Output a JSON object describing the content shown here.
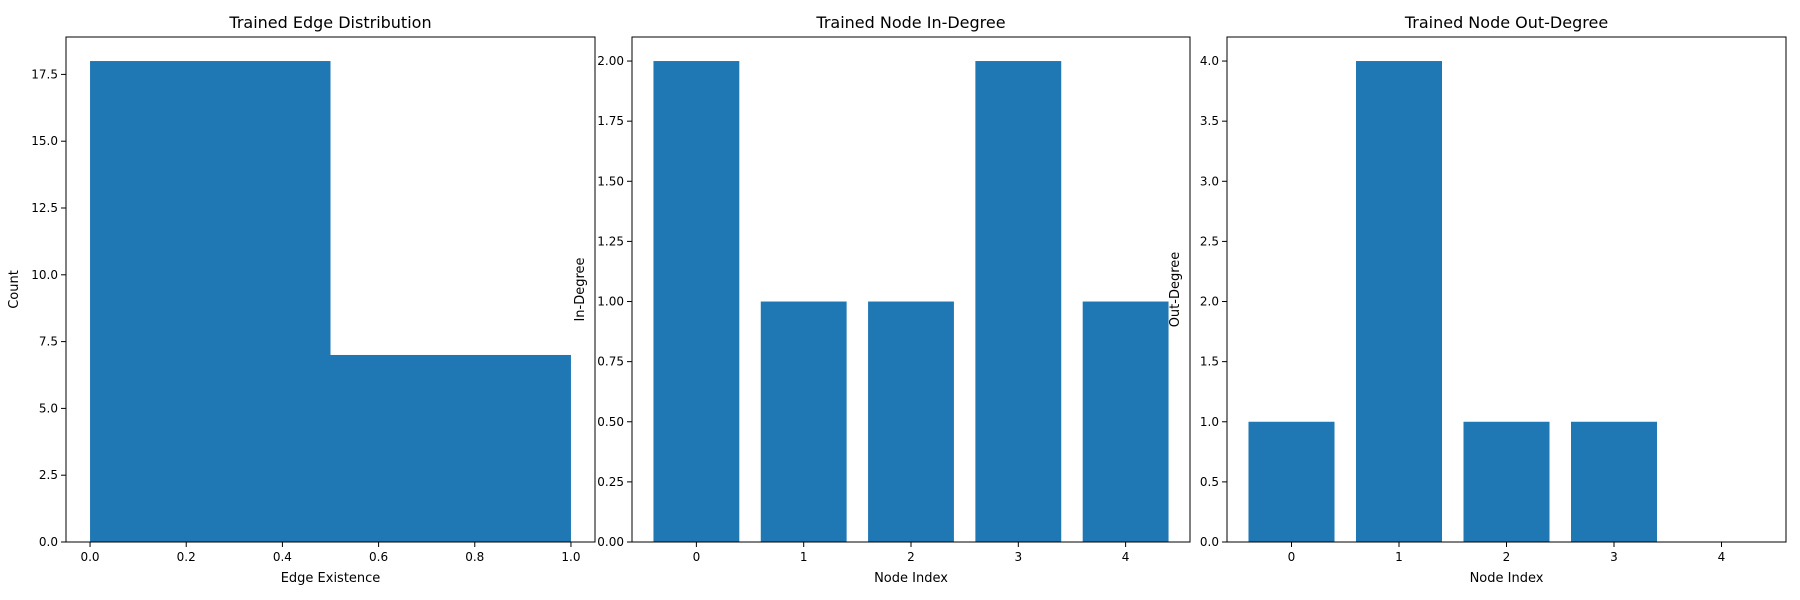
{
  "chart_data": [
    {
      "type": "bar",
      "subtype": "histogram",
      "title": "Trained Edge Distribution",
      "xlabel": "Edge Existence",
      "ylabel": "Count",
      "bins": [
        {
          "start": 0.0,
          "end": 0.5,
          "value": 18
        },
        {
          "start": 0.5,
          "end": 1.0,
          "value": 7
        }
      ],
      "xlim": [
        -0.05,
        1.05
      ],
      "ylim": [
        0,
        18.9
      ],
      "xticks": [
        0.0,
        0.2,
        0.4,
        0.6,
        0.8,
        1.0
      ],
      "xtick_labels": [
        "0.0",
        "0.2",
        "0.4",
        "0.6",
        "0.8",
        "1.0"
      ],
      "yticks": [
        0,
        2.5,
        5,
        7.5,
        10,
        12.5,
        15,
        17.5
      ],
      "ytick_labels": [
        "0.0",
        "2.5",
        "5.0",
        "7.5",
        "10.0",
        "12.5",
        "15.0",
        "17.5"
      ],
      "color": "#1f77b4",
      "grid": false,
      "legend": false
    },
    {
      "type": "bar",
      "title": "Trained Node In-Degree",
      "xlabel": "Node Index",
      "ylabel": "In-Degree",
      "categories": [
        "0",
        "1",
        "2",
        "3",
        "4"
      ],
      "values": [
        2,
        1,
        1,
        2,
        1
      ],
      "xlim": [
        -0.6,
        4.6
      ],
      "ylim": [
        0,
        2.1
      ],
      "yticks": [
        0,
        0.25,
        0.5,
        0.75,
        1.0,
        1.25,
        1.5,
        1.75,
        2.0
      ],
      "ytick_labels": [
        "0.00",
        "0.25",
        "0.50",
        "0.75",
        "1.00",
        "1.25",
        "1.50",
        "1.75",
        "2.00"
      ],
      "color": "#1f77b4",
      "grid": false,
      "legend": false
    },
    {
      "type": "bar",
      "title": "Trained Node Out-Degree",
      "xlabel": "Node Index",
      "ylabel": "Out-Degree",
      "categories": [
        "0",
        "1",
        "2",
        "3",
        "4"
      ],
      "values": [
        1,
        4,
        1,
        1,
        0
      ],
      "xlim": [
        -0.6,
        4.6
      ],
      "ylim": [
        0,
        4.2
      ],
      "yticks": [
        0,
        0.5,
        1.0,
        1.5,
        2.0,
        2.5,
        3.0,
        3.5,
        4.0
      ],
      "ytick_labels": [
        "0.0",
        "0.5",
        "1.0",
        "1.5",
        "2.0",
        "2.5",
        "3.0",
        "3.5",
        "4.0"
      ],
      "color": "#1f77b4",
      "grid": false,
      "legend": false
    }
  ]
}
